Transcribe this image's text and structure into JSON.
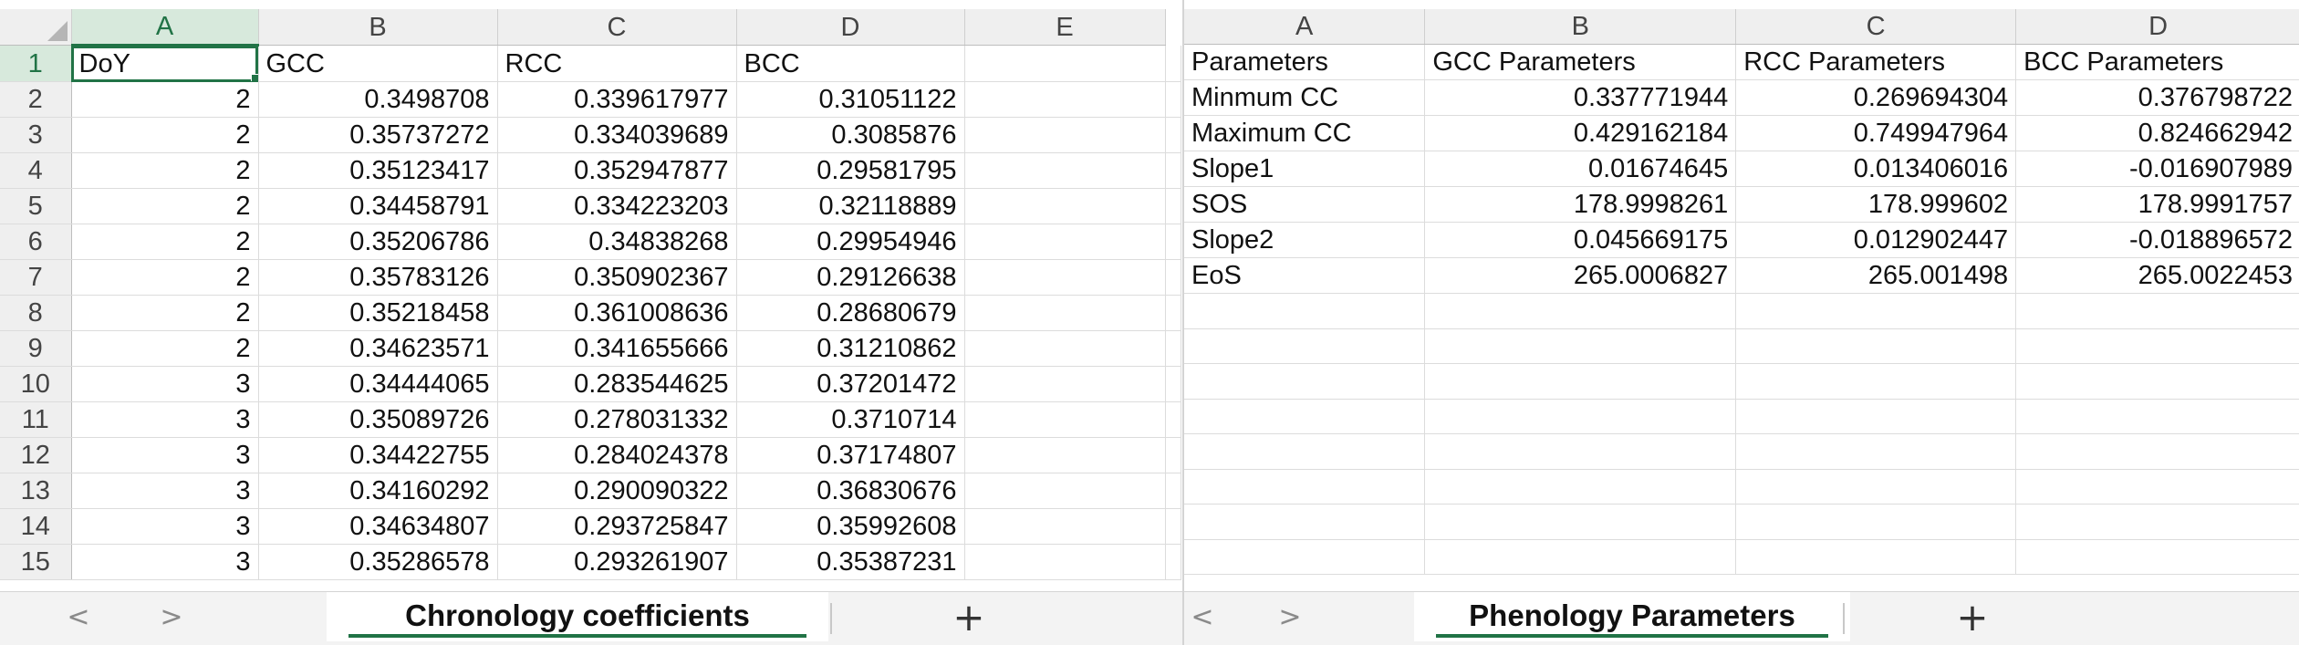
{
  "left_pane": {
    "columns": [
      "A",
      "B",
      "C",
      "D",
      "E"
    ],
    "selected_column": "A",
    "selected_row": "1",
    "rows": [
      {
        "n": "1",
        "cells": [
          "DoY",
          "GCC",
          "RCC",
          "BCC",
          ""
        ]
      },
      {
        "n": "2",
        "cells": [
          "2",
          "0.3498708",
          "0.339617977",
          "0.31051122",
          ""
        ]
      },
      {
        "n": "3",
        "cells": [
          "2",
          "0.35737272",
          "0.334039689",
          "0.3085876",
          ""
        ]
      },
      {
        "n": "4",
        "cells": [
          "2",
          "0.35123417",
          "0.352947877",
          "0.29581795",
          ""
        ]
      },
      {
        "n": "5",
        "cells": [
          "2",
          "0.34458791",
          "0.334223203",
          "0.32118889",
          ""
        ]
      },
      {
        "n": "6",
        "cells": [
          "2",
          "0.35206786",
          "0.34838268",
          "0.29954946",
          ""
        ]
      },
      {
        "n": "7",
        "cells": [
          "2",
          "0.35783126",
          "0.350902367",
          "0.29126638",
          ""
        ]
      },
      {
        "n": "8",
        "cells": [
          "2",
          "0.35218458",
          "0.361008636",
          "0.28680679",
          ""
        ]
      },
      {
        "n": "9",
        "cells": [
          "2",
          "0.34623571",
          "0.341655666",
          "0.31210862",
          ""
        ]
      },
      {
        "n": "10",
        "cells": [
          "3",
          "0.34444065",
          "0.283544625",
          "0.37201472",
          ""
        ]
      },
      {
        "n": "11",
        "cells": [
          "3",
          "0.35089726",
          "0.278031332",
          "0.3710714",
          ""
        ]
      },
      {
        "n": "12",
        "cells": [
          "3",
          "0.34422755",
          "0.284024378",
          "0.37174807",
          ""
        ]
      },
      {
        "n": "13",
        "cells": [
          "3",
          "0.34160292",
          "0.290090322",
          "0.36830676",
          ""
        ]
      },
      {
        "n": "14",
        "cells": [
          "3",
          "0.34634807",
          "0.293725847",
          "0.35992608",
          ""
        ]
      },
      {
        "n": "15",
        "cells": [
          "3",
          "0.35286578",
          "0.293261907",
          "0.35387231",
          ""
        ]
      }
    ],
    "sheet_tab": "Chronology coefficients",
    "nav_prev": "<",
    "nav_next": ">",
    "add_sheet": "+"
  },
  "right_pane": {
    "columns": [
      "A",
      "B",
      "C",
      "D"
    ],
    "rows": [
      {
        "cells": [
          "Parameters",
          "GCC Parameters",
          "RCC Parameters",
          "BCC Parameters"
        ]
      },
      {
        "cells": [
          "Minmum CC",
          "0.337771944",
          "0.269694304",
          "0.376798722"
        ]
      },
      {
        "cells": [
          "Maximum CC",
          "0.429162184",
          "0.749947964",
          "0.824662942"
        ]
      },
      {
        "cells": [
          "Slope1",
          "0.01674645",
          "0.013406016",
          "-0.016907989"
        ]
      },
      {
        "cells": [
          "SOS",
          "178.9998261",
          "178.999602",
          "178.9991757"
        ]
      },
      {
        "cells": [
          "Slope2",
          "0.045669175",
          "0.012902447",
          "-0.018896572"
        ]
      },
      {
        "cells": [
          "EoS",
          "265.0006827",
          "265.001498",
          "265.0022453"
        ]
      },
      {
        "cells": [
          "",
          "",
          "",
          ""
        ]
      },
      {
        "cells": [
          "",
          "",
          "",
          ""
        ]
      },
      {
        "cells": [
          "",
          "",
          "",
          ""
        ]
      },
      {
        "cells": [
          "",
          "",
          "",
          ""
        ]
      },
      {
        "cells": [
          "",
          "",
          "",
          ""
        ]
      },
      {
        "cells": [
          "",
          "",
          "",
          ""
        ]
      },
      {
        "cells": [
          "",
          "",
          "",
          ""
        ]
      },
      {
        "cells": [
          "",
          "",
          "",
          ""
        ]
      }
    ],
    "sheet_tab": "Phenology Parameters",
    "nav_prev": "<",
    "nav_next": ">",
    "add_sheet": "+"
  },
  "colors": {
    "accent": "#217346",
    "header_bg": "#efefef",
    "selected_header_bg": "#d7e9dc",
    "gridline": "#dcdcdc"
  }
}
